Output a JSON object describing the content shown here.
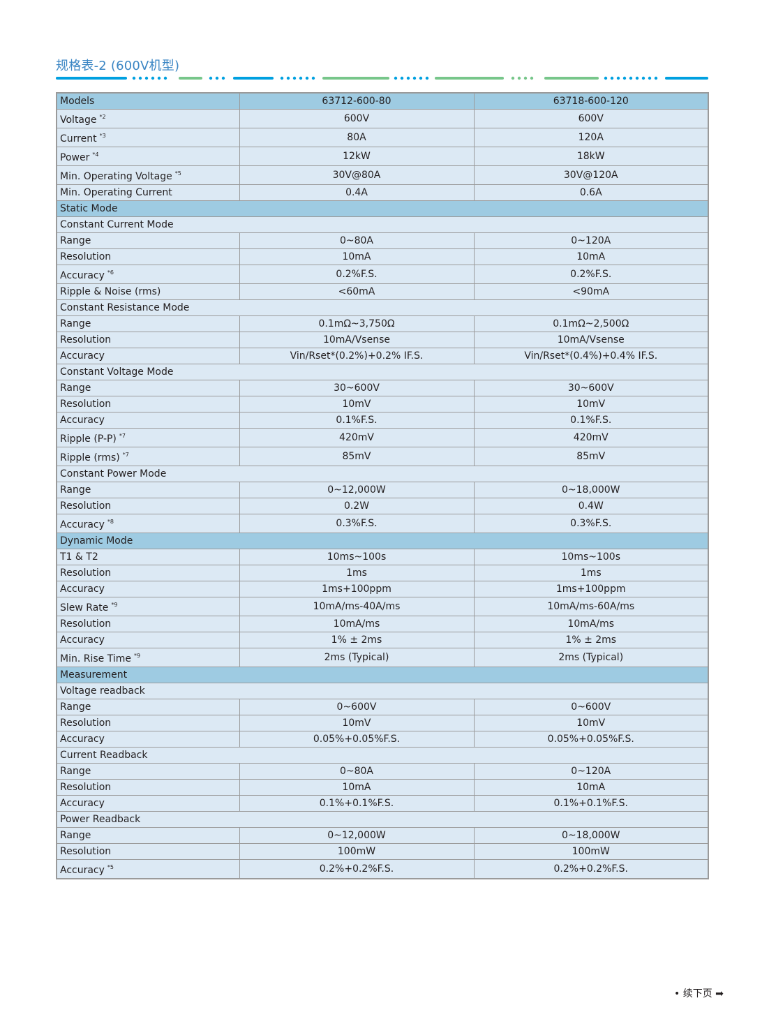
{
  "title": "规格表-2 (600V机型)",
  "colors": {
    "title": "#3b86c4",
    "blue_line": "#00a0e0",
    "green_line": "#77c68a",
    "header_row": "#9ecbe2",
    "row": "#dce9f4",
    "border": "#9a9a9a"
  },
  "table": {
    "rows": [
      {
        "type": "header",
        "label": "Models",
        "sup": "",
        "v1": "63712-600-80",
        "v2": "63718-600-120"
      },
      {
        "type": "data",
        "label": "Voltage",
        "sup": "*2",
        "v1": "600V",
        "v2": "600V"
      },
      {
        "type": "data",
        "label": "Current",
        "sup": "*3",
        "v1": "80A",
        "v2": "120A"
      },
      {
        "type": "data",
        "label": "Power",
        "sup": "*4",
        "v1": "12kW",
        "v2": "18kW"
      },
      {
        "type": "data",
        "label": "Min. Operating Voltage",
        "sup": "*5",
        "v1": "30V@80A",
        "v2": "30V@120A"
      },
      {
        "type": "data",
        "label": "Min. Operating Current",
        "sup": "",
        "v1": "0.4A",
        "v2": "0.6A"
      },
      {
        "type": "section",
        "label": "Static Mode"
      },
      {
        "type": "sub",
        "label": "Constant Current Mode"
      },
      {
        "type": "data",
        "label": "Range",
        "sup": "",
        "v1": "0~80A",
        "v2": "0~120A"
      },
      {
        "type": "data",
        "label": "Resolution",
        "sup": "",
        "v1": "10mA",
        "v2": "10mA"
      },
      {
        "type": "data",
        "label": "Accuracy",
        "sup": "*6",
        "v1": "0.2%F.S.",
        "v2": "0.2%F.S."
      },
      {
        "type": "data",
        "label": "Ripple & Noise (rms)",
        "sup": "",
        "v1": "<60mA",
        "v2": "<90mA"
      },
      {
        "type": "sub",
        "label": "Constant Resistance Mode"
      },
      {
        "type": "data",
        "label": "Range",
        "sup": "",
        "v1": "0.1mΩ~3,750Ω",
        "v2": "0.1mΩ~2,500Ω"
      },
      {
        "type": "data",
        "label": "Resolution",
        "sup": "",
        "v1": "10mA/Vsense",
        "v2": "10mA/Vsense"
      },
      {
        "type": "data",
        "label": "Accuracy",
        "sup": "",
        "v1": "Vin/Rset*(0.2%)+0.2% IF.S.",
        "v2": "Vin/Rset*(0.4%)+0.4% IF.S."
      },
      {
        "type": "sub",
        "label": "Constant Voltage Mode"
      },
      {
        "type": "data",
        "label": "Range",
        "sup": "",
        "v1": "30~600V",
        "v2": "30~600V"
      },
      {
        "type": "data",
        "label": "Resolution",
        "sup": "",
        "v1": "10mV",
        "v2": "10mV"
      },
      {
        "type": "data",
        "label": "Accuracy",
        "sup": "",
        "v1": "0.1%F.S.",
        "v2": "0.1%F.S."
      },
      {
        "type": "data",
        "label": "Ripple (P-P)",
        "sup": "*7",
        "v1": "420mV",
        "v2": "420mV"
      },
      {
        "type": "data",
        "label": "Ripple (rms)",
        "sup": "*7",
        "v1": "85mV",
        "v2": "85mV"
      },
      {
        "type": "sub",
        "label": "Constant Power Mode"
      },
      {
        "type": "data",
        "label": "Range",
        "sup": "",
        "v1": "0~12,000W",
        "v2": "0~18,000W"
      },
      {
        "type": "data",
        "label": "Resolution",
        "sup": "",
        "v1": "0.2W",
        "v2": "0.4W"
      },
      {
        "type": "data",
        "label": "Accuracy",
        "sup": "*8",
        "v1": "0.3%F.S.",
        "v2": "0.3%F.S."
      },
      {
        "type": "section",
        "label": "Dynamic Mode"
      },
      {
        "type": "data",
        "label": "T1 & T2",
        "sup": "",
        "v1": "10ms~100s",
        "v2": "10ms~100s"
      },
      {
        "type": "data",
        "label": "Resolution",
        "sup": "",
        "v1": "1ms",
        "v2": "1ms"
      },
      {
        "type": "data",
        "label": "Accuracy",
        "sup": "",
        "v1": "1ms+100ppm",
        "v2": "1ms+100ppm"
      },
      {
        "type": "data",
        "label": "Slew Rate",
        "sup": "*9",
        "v1": "10mA/ms-40A/ms",
        "v2": "10mA/ms-60A/ms"
      },
      {
        "type": "data",
        "label": "Resolution",
        "sup": "",
        "v1": "10mA/ms",
        "v2": "10mA/ms"
      },
      {
        "type": "data",
        "label": "Accuracy",
        "sup": "",
        "v1": "1% ± 2ms",
        "v2": "1% ± 2ms"
      },
      {
        "type": "data",
        "label": "Min. Rise Time",
        "sup": "*9",
        "v1": "2ms (Typical)",
        "v2": "2ms (Typical)"
      },
      {
        "type": "section",
        "label": "Measurement"
      },
      {
        "type": "sub",
        "label": "Voltage readback"
      },
      {
        "type": "data",
        "label": "Range",
        "sup": "",
        "v1": "0~600V",
        "v2": "0~600V"
      },
      {
        "type": "data",
        "label": "Resolution",
        "sup": "",
        "v1": "10mV",
        "v2": "10mV"
      },
      {
        "type": "data",
        "label": "Accuracy",
        "sup": "",
        "v1": "0.05%+0.05%F.S.",
        "v2": "0.05%+0.05%F.S."
      },
      {
        "type": "sub",
        "label": "Current Readback"
      },
      {
        "type": "data",
        "label": "Range",
        "sup": "",
        "v1": "0~80A",
        "v2": "0~120A"
      },
      {
        "type": "data",
        "label": "Resolution",
        "sup": "",
        "v1": "10mA",
        "v2": "10mA"
      },
      {
        "type": "data",
        "label": "Accuracy",
        "sup": "",
        "v1": "0.1%+0.1%F.S.",
        "v2": "0.1%+0.1%F.S."
      },
      {
        "type": "sub",
        "label": "Power Readback"
      },
      {
        "type": "data",
        "label": "Range",
        "sup": "",
        "v1": "0~12,000W",
        "v2": "0~18,000W"
      },
      {
        "type": "data",
        "label": "Resolution",
        "sup": "",
        "v1": "100mW",
        "v2": "100mW"
      },
      {
        "type": "data",
        "label": "Accuracy",
        "sup": "*5",
        "v1": "0.2%+0.2%F.S.",
        "v2": "0.2%+0.2%F.S."
      }
    ]
  },
  "footer": {
    "bullet": "•",
    "text": "续下页",
    "arrow": "➡"
  }
}
